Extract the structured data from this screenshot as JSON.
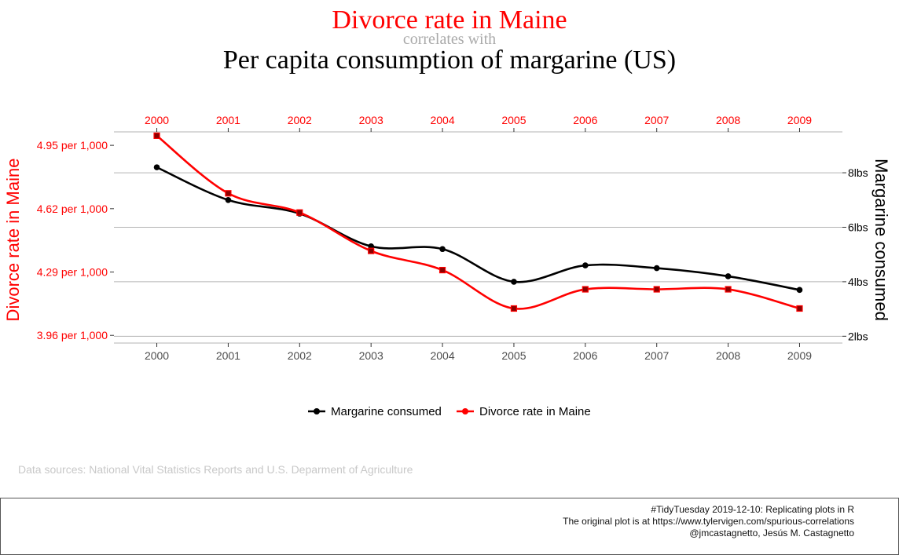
{
  "title": "Divorce rate in Maine",
  "connector": "correlates with",
  "subtitle": "Per capita consumption of margarine (US)",
  "source_note": "Data sources: National Vital Statistics Reports and U.S. Deparment of Agriculture",
  "caption": [
    "#TidyTuesday 2019-12-10: Replicating plots in R",
    "The original plot is at https://www.tylervigen.com/spurious-correlations",
    "@jmcastagnetto, Jesús M. Castagnetto"
  ],
  "colors": {
    "divorce": "#ff0000",
    "margarine": "#000000",
    "connector": "#aaaaaa",
    "grid": "#b3b3b3",
    "tick_text": "#4d4d4d",
    "source_note": "#c8c8c8"
  },
  "chart_data": {
    "type": "line",
    "x": [
      2000,
      2001,
      2002,
      2003,
      2004,
      2005,
      2006,
      2007,
      2008,
      2009
    ],
    "x_top_labels": [
      "2000",
      "2001",
      "2002",
      "2003",
      "2004",
      "2005",
      "2006",
      "2007",
      "2008",
      "2009"
    ],
    "x_bottom_labels": [
      "2000",
      "2001",
      "2002",
      "2003",
      "2004",
      "2005",
      "2006",
      "2007",
      "2008",
      "2009"
    ],
    "left_axis": {
      "label": "Divorce rate in Maine",
      "tick_values": [
        3.96,
        4.29,
        4.62,
        4.95
      ],
      "tick_labels": [
        "3.96 per 1,000",
        "4.29 per 1,000",
        "4.62 per 1,000",
        "4.95 per 1,000"
      ],
      "ylim": [
        3.92,
        5.02
      ]
    },
    "right_axis": {
      "label": "Margarine consumed",
      "tick_values": [
        2,
        4,
        6,
        8
      ],
      "tick_labels": [
        "2lbs",
        "4lbs",
        "6lbs",
        "8lbs"
      ],
      "ylim": [
        1.75,
        9.5
      ]
    },
    "series": [
      {
        "name": "Margarine consumed",
        "axis": "right",
        "color": "#000000",
        "marker": "circle",
        "values": [
          8.2,
          7.0,
          6.5,
          5.3,
          5.2,
          4.0,
          4.6,
          4.5,
          4.2,
          3.7
        ]
      },
      {
        "name": "Divorce rate in Maine",
        "axis": "left",
        "color": "#ff0000",
        "marker": "square",
        "values": [
          5.0,
          4.7,
          4.6,
          4.4,
          4.3,
          4.1,
          4.2,
          4.2,
          4.2,
          4.1
        ]
      }
    ],
    "legend": {
      "position": "bottom",
      "entries": [
        "Margarine consumed",
        "Divorce rate in Maine"
      ]
    },
    "grid": "horizontal"
  }
}
